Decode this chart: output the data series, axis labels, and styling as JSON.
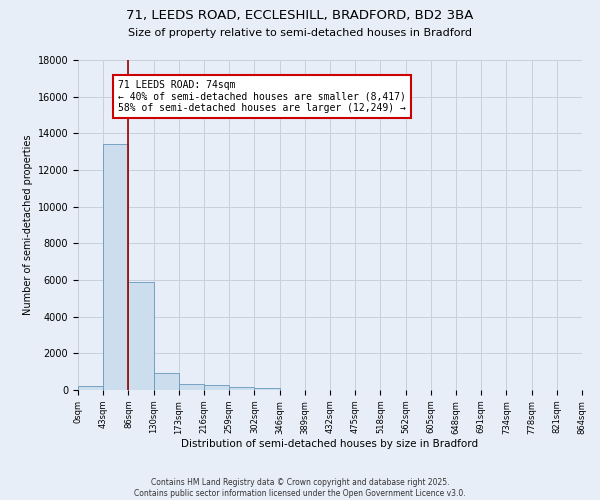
{
  "title_line1": "71, LEEDS ROAD, ECCLESHILL, BRADFORD, BD2 3BA",
  "title_line2": "Size of property relative to semi-detached houses in Bradford",
  "xlabel": "Distribution of semi-detached houses by size in Bradford",
  "ylabel": "Number of semi-detached properties",
  "bar_values": [
    200,
    13400,
    5900,
    950,
    320,
    280,
    150,
    100,
    0,
    0,
    0,
    0,
    0,
    0,
    0,
    0,
    0,
    0,
    0,
    0
  ],
  "bin_labels": [
    "0sqm",
    "43sqm",
    "86sqm",
    "130sqm",
    "173sqm",
    "216sqm",
    "259sqm",
    "302sqm",
    "346sqm",
    "389sqm",
    "432sqm",
    "475sqm",
    "518sqm",
    "562sqm",
    "605sqm",
    "648sqm",
    "691sqm",
    "734sqm",
    "778sqm",
    "821sqm",
    "864sqm"
  ],
  "bar_color": "#ccdded",
  "bar_edge_color": "#6699bb",
  "red_line_x": 2.0,
  "property_size": "74sqm",
  "pct_smaller": 40,
  "num_smaller": 8417,
  "pct_larger": 58,
  "num_larger": 12249,
  "annotation_box_color": "#ffffff",
  "annotation_box_edge": "#cc0000",
  "ylim": [
    0,
    18000
  ],
  "yticks": [
    0,
    2000,
    4000,
    6000,
    8000,
    10000,
    12000,
    14000,
    16000,
    18000
  ],
  "fig_bg": "#e8eef8",
  "plot_bg": "#e8eef8",
  "grid_color": "#c8d0dc",
  "footer_line1": "Contains HM Land Registry data © Crown copyright and database right 2025.",
  "footer_line2": "Contains public sector information licensed under the Open Government Licence v3.0."
}
